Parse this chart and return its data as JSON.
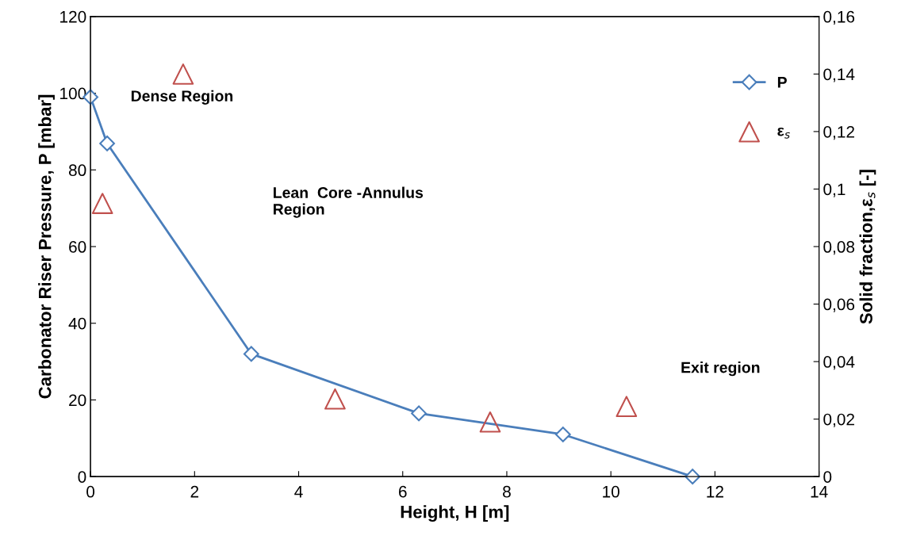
{
  "chart_data": {
    "type": "line",
    "xlabel": "Height, H [m]",
    "ylabel": "Carbonator Riser Pressure, P [mbar]",
    "y2label": "Solid fraction,ε$_{s}$ [-]",
    "xlim": [
      0,
      14
    ],
    "xticks": [
      0,
      2,
      4,
      6,
      8,
      10,
      12,
      14
    ],
    "ylim": [
      0,
      120
    ],
    "yticks": [
      0,
      20,
      40,
      60,
      80,
      100,
      120
    ],
    "y2lim": [
      0,
      0.16
    ],
    "y2ticks": [
      {
        "value": 0,
        "label": "0"
      },
      {
        "value": 0.02,
        "label": "0,02"
      },
      {
        "value": 0.04,
        "label": "0,04"
      },
      {
        "value": 0.06,
        "label": "0,06"
      },
      {
        "value": 0.08,
        "label": "0,08"
      },
      {
        "value": 0.1,
        "label": "0,1"
      },
      {
        "value": 0.12,
        "label": "0,12"
      },
      {
        "value": 0.14,
        "label": "0,14"
      },
      {
        "value": 0.16,
        "label": "0,16"
      }
    ],
    "series": [
      {
        "name": "P",
        "color": "#4a7ebb",
        "marker": "diamond",
        "x": [
          0,
          0.32,
          3.09,
          6.31,
          9.08,
          11.57
        ],
        "values": [
          99,
          86.9,
          32,
          16.5,
          11,
          0
        ]
      },
      {
        "name": "ε$_{s}$",
        "type": "scatter",
        "axis": "y2",
        "color": "#c0504d",
        "marker": "triangle",
        "x": [
          0.23,
          1.78,
          4.7,
          7.68,
          10.3
        ],
        "values": [
          0.095,
          0.14,
          0.027,
          0.019,
          0.0244
        ]
      }
    ],
    "annotations": [
      "Dense Region",
      "Lean  Core -Annulus\nRegion",
      "Exit region"
    ],
    "grid": false,
    "legend": "top right"
  }
}
